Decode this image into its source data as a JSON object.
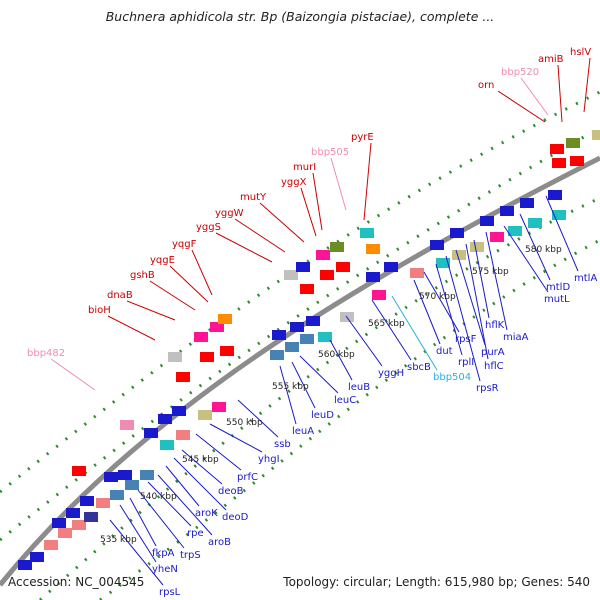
{
  "title": "Buchnera aphidicola str. Bp (Baizongia pistaciae), complete ...",
  "footer": {
    "accession": "Accession: NC_004545",
    "summary": "Topology: circular; Length: 615,980 bp; Genes: 540"
  },
  "colors": {
    "backbone": "#8c8c8c",
    "dots": "#2e8b2e",
    "label_red": "#cc0000",
    "label_pink": "#f08cb4",
    "label_blue": "#1a1acc",
    "label_cyan": "#27b0e0"
  },
  "kbp_ticks": [
    "535 kbp",
    "540 kbp",
    "545 kbp",
    "550 kbp",
    "555 kbp",
    "560 kbp",
    "565 kbp",
    "570 kbp",
    "575 kbp",
    "580 kbp"
  ],
  "genes_outer": [
    {
      "name": "bbp482"
    },
    {
      "name": "bioH"
    },
    {
      "name": "dnaB"
    },
    {
      "name": "gshB"
    },
    {
      "name": "yqgE"
    },
    {
      "name": "yqgF"
    },
    {
      "name": "yggS"
    },
    {
      "name": "yggW"
    },
    {
      "name": "mutY"
    },
    {
      "name": "yggX"
    },
    {
      "name": "murI"
    },
    {
      "name": "bbp505"
    },
    {
      "name": "pyrE"
    },
    {
      "name": "orn"
    },
    {
      "name": "bbp520"
    },
    {
      "name": "amiB"
    },
    {
      "name": "hslV"
    }
  ],
  "genes_inner": [
    {
      "name": "rpsL"
    },
    {
      "name": "yheN"
    },
    {
      "name": "fkpA"
    },
    {
      "name": "trpS"
    },
    {
      "name": "rpe"
    },
    {
      "name": "aroB"
    },
    {
      "name": "aroK"
    },
    {
      "name": "deoD"
    },
    {
      "name": "deoB"
    },
    {
      "name": "prfC"
    },
    {
      "name": "yhgI"
    },
    {
      "name": "ssb"
    },
    {
      "name": "leuA"
    },
    {
      "name": "leuD"
    },
    {
      "name": "leuC"
    },
    {
      "name": "leuB"
    },
    {
      "name": "yggH"
    },
    {
      "name": "sbcB"
    },
    {
      "name": "bbp504"
    },
    {
      "name": "dut"
    },
    {
      "name": "rpsF"
    },
    {
      "name": "rplI"
    },
    {
      "name": "rpsR"
    },
    {
      "name": "purA"
    },
    {
      "name": "hflC"
    },
    {
      "name": "hflK"
    },
    {
      "name": "miaA"
    },
    {
      "name": "mutL"
    },
    {
      "name": "mtlD"
    },
    {
      "name": "mtlA"
    }
  ]
}
